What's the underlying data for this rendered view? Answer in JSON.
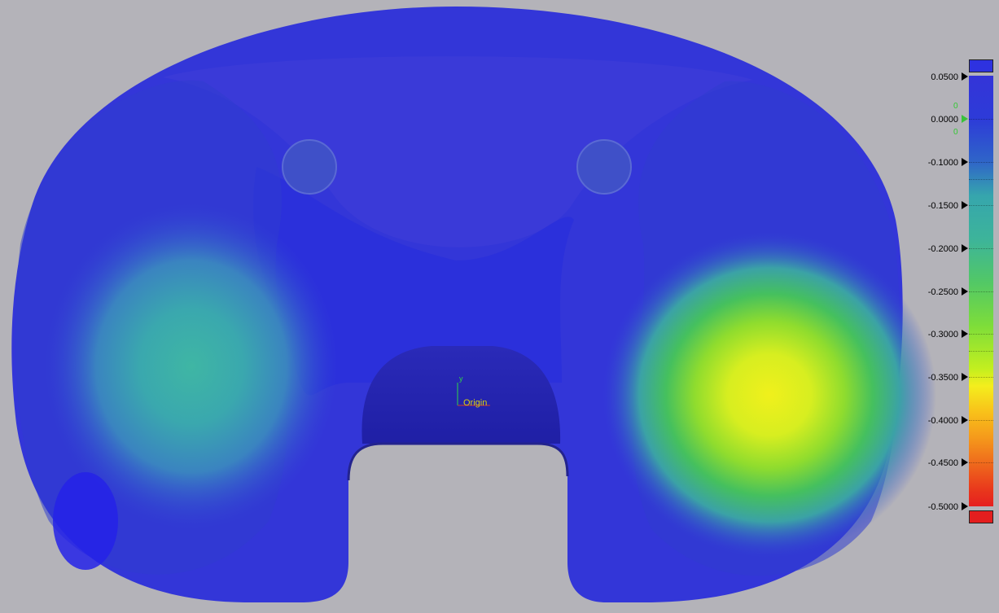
{
  "viewport": {
    "origin_label": "Origin",
    "axis_y_label": "y"
  },
  "legend": {
    "colors": {
      "above_max": "#2e32e0",
      "below_min": "#e41e1e",
      "zero_marker": "#39c23a"
    },
    "labels": [
      "0.0500",
      "0.0000",
      "-0.1000",
      "-0.1500",
      "-0.2000",
      "-0.2500",
      "-0.3000",
      "-0.3500",
      "-0.4000",
      "-0.4500",
      "-0.5000"
    ],
    "zero_upper": "0",
    "zero_lower": "0"
  }
}
